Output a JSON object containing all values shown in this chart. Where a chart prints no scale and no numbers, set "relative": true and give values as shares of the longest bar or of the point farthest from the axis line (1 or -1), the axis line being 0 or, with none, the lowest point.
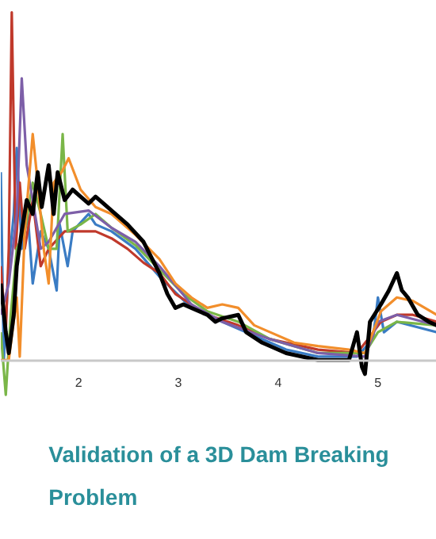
{
  "chart_data": {
    "type": "line",
    "title": "Validation of a 3D Dam Breaking Problem",
    "relative": true,
    "xlim": [
      1.22,
      5.59
    ],
    "xticks": [
      2,
      3,
      4,
      5
    ],
    "series": [
      {
        "color": "#3a7cc4",
        "x": [
          1.22,
          1.25,
          1.3,
          1.35,
          1.38,
          1.43,
          1.49,
          1.54,
          1.62,
          1.7,
          1.78,
          1.81,
          1.89,
          1.94,
          2.1,
          2.17,
          2.33,
          2.57,
          2.81,
          3.13,
          3.44,
          3.76,
          4.08,
          4.4,
          4.79,
          4.95,
          5.0,
          5.06,
          5.19,
          5.59
        ],
        "values": [
          0.54,
          0,
          0.27,
          0.42,
          0.61,
          0.32,
          0.42,
          0.22,
          0.37,
          0.32,
          0.2,
          0.39,
          0.27,
          0.37,
          0.42,
          0.39,
          0.37,
          0.32,
          0.24,
          0.15,
          0.11,
          0.07,
          0.03,
          0.01,
          0.01,
          0.06,
          0.18,
          0.08,
          0.11,
          0.08
        ]
      },
      {
        "color": "#c0392b",
        "x": [
          1.22,
          1.27,
          1.3,
          1.33,
          1.37,
          1.41,
          1.46,
          1.54,
          1.62,
          1.7,
          1.86,
          2.02,
          2.17,
          2.33,
          2.49,
          2.65,
          2.81,
          2.97,
          3.29,
          3.6,
          3.92,
          4.4,
          4.79,
          4.9,
          5.03,
          5.19,
          5.35,
          5.59
        ],
        "values": [
          0.27,
          0.08,
          0.32,
          1.0,
          0.32,
          0.51,
          0.32,
          0.46,
          0.27,
          0.32,
          0.37,
          0.37,
          0.37,
          0.35,
          0.32,
          0.28,
          0.25,
          0.19,
          0.13,
          0.1,
          0.06,
          0.03,
          0.02,
          0.06,
          0.11,
          0.13,
          0.13,
          0.11
        ]
      },
      {
        "color": "#7ab648",
        "x": [
          1.22,
          1.27,
          1.32,
          1.38,
          1.46,
          1.54,
          1.62,
          1.7,
          1.78,
          1.84,
          1.89,
          2.02,
          2.17,
          2.33,
          2.57,
          2.81,
          3.05,
          3.29,
          3.6,
          3.92,
          4.4,
          4.87,
          5.0,
          5.19,
          5.59
        ],
        "values": [
          0.08,
          -0.1,
          0.13,
          0.32,
          0.37,
          0.51,
          0.42,
          0.32,
          0.32,
          0.65,
          0.37,
          0.39,
          0.42,
          0.38,
          0.33,
          0.26,
          0.19,
          0.14,
          0.11,
          0.06,
          0.02,
          0.02,
          0.08,
          0.11,
          0.1
        ]
      },
      {
        "color": "#7d5fa8",
        "x": [
          1.22,
          1.3,
          1.38,
          1.43,
          1.48,
          1.54,
          1.62,
          1.7,
          1.86,
          2.1,
          2.33,
          2.57,
          2.81,
          3.13,
          3.44,
          3.92,
          4.4,
          4.87,
          5.0,
          5.19,
          5.59
        ],
        "values": [
          0.13,
          0.22,
          0.42,
          0.81,
          0.56,
          0.46,
          0.32,
          0.34,
          0.42,
          0.43,
          0.38,
          0.34,
          0.27,
          0.16,
          0.11,
          0.06,
          0.02,
          0.01,
          0.11,
          0.13,
          0.1
        ]
      },
      {
        "color": "#f28e2b",
        "x": [
          1.22,
          1.3,
          1.38,
          1.41,
          1.46,
          1.54,
          1.59,
          1.65,
          1.7,
          1.75,
          1.83,
          1.9,
          2.02,
          2.17,
          2.33,
          2.57,
          2.81,
          2.97,
          3.13,
          3.29,
          3.44,
          3.6,
          3.76,
          3.92,
          4.16,
          4.4,
          4.71,
          4.87,
          4.95,
          5.03,
          5.19,
          5.35,
          5.59
        ],
        "values": [
          0,
          0,
          0.18,
          0.01,
          0.37,
          0.65,
          0.51,
          0.32,
          0.22,
          0.51,
          0.54,
          0.58,
          0.49,
          0.44,
          0.42,
          0.36,
          0.29,
          0.22,
          0.18,
          0.15,
          0.16,
          0.15,
          0.1,
          0.08,
          0.05,
          0.04,
          0.03,
          0.02,
          0.08,
          0.14,
          0.18,
          0.17,
          0.13
        ]
      },
      {
        "color": "#000000",
        "x": [
          1.22,
          1.27,
          1.3,
          1.35,
          1.38,
          1.43,
          1.48,
          1.54,
          1.59,
          1.63,
          1.7,
          1.75,
          1.79,
          1.86,
          1.94,
          2.02,
          2.1,
          2.17,
          2.33,
          2.49,
          2.65,
          2.81,
          2.89,
          2.97,
          3.05,
          3.13,
          3.29,
          3.37,
          3.44,
          3.6,
          3.68,
          3.84,
          4.08,
          4.4,
          4.71,
          4.79,
          4.84,
          4.87,
          4.92,
          5.03,
          5.11,
          5.19,
          5.24,
          5.3,
          5.4,
          5.51,
          5.59
        ],
        "values": [
          0.22,
          0.08,
          0.02,
          0.13,
          0.27,
          0.37,
          0.46,
          0.42,
          0.54,
          0.44,
          0.56,
          0.42,
          0.54,
          0.46,
          0.49,
          0.47,
          0.45,
          0.47,
          0.43,
          0.39,
          0.34,
          0.25,
          0.19,
          0.15,
          0.16,
          0.15,
          0.13,
          0.11,
          0.12,
          0.13,
          0.08,
          0.05,
          0.02,
          0.0,
          0.0,
          0.08,
          -0.02,
          -0.04,
          0.11,
          0.16,
          0.2,
          0.25,
          0.2,
          0.18,
          0.13,
          0.11,
          0.1
        ]
      }
    ]
  }
}
